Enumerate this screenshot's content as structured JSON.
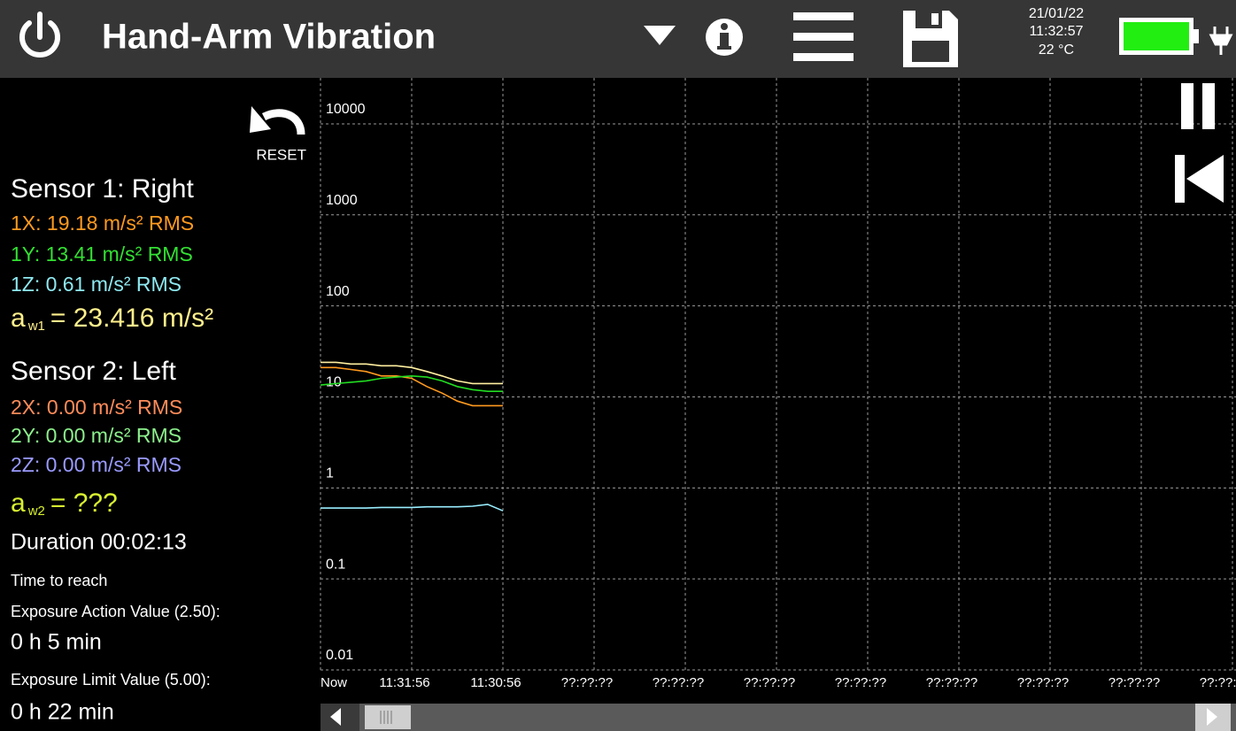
{
  "header": {
    "title": "Hand-Arm Vibration",
    "date": "21/01/22",
    "time": "11:32:57",
    "temperature": "22 °C"
  },
  "sidebar": {
    "reset": "RESET",
    "sensor1": {
      "title": "Sensor 1: Right",
      "lines": [
        "1X: 19.18 m/s² RMS",
        "1Y: 13.41 m/s² RMS",
        "1Z: 0.61 m/s² RMS"
      ],
      "aw": {
        "symbol": "a",
        "sub": "w1",
        "text": "= 23.416 m/s²"
      }
    },
    "sensor2": {
      "title": "Sensor 2: Left",
      "lines": [
        "2X: 0.00 m/s² RMS",
        "2Y: 0.00 m/s² RMS",
        "2Z: 0.00 m/s² RMS"
      ],
      "aw": {
        "symbol": "a",
        "sub": "w2",
        "text": "= ???"
      }
    },
    "duration": "Duration 00:02:13",
    "time_to_reach": "Time to reach",
    "eav_label": "Exposure Action Value (2.50):",
    "eav": "0 h 5 min",
    "elv_label": "Exposure Limit Value (5.00):",
    "elv": "0 h 22 min"
  },
  "chart_data": {
    "type": "line",
    "yscale": "log",
    "grid": true,
    "x": [
      0,
      10,
      20,
      30,
      40,
      50,
      60,
      70,
      80,
      90,
      100,
      110,
      120
    ],
    "xlim": [
      0,
      600
    ],
    "xticks": [
      {
        "value": 0,
        "label": "Now"
      },
      {
        "value": 60,
        "label": "11:31:56"
      },
      {
        "value": 120,
        "label": "11:30:56"
      },
      {
        "value": 180,
        "label": "??:??:??"
      },
      {
        "value": 240,
        "label": "??:??:??"
      },
      {
        "value": 300,
        "label": "??:??:??"
      },
      {
        "value": 360,
        "label": "??:??:??"
      },
      {
        "value": 420,
        "label": "??:??:??"
      },
      {
        "value": 480,
        "label": "??:??:??"
      },
      {
        "value": 540,
        "label": "??:??:??"
      },
      {
        "value": 600,
        "label": "??:??:??"
      }
    ],
    "ylim": [
      0.01,
      32000
    ],
    "yticks": [
      0.01,
      0.1,
      1,
      10,
      100,
      1000,
      10000
    ],
    "series": [
      {
        "color": "#fff0a0",
        "values": [
          24,
          24,
          23,
          23,
          22,
          22,
          21,
          19,
          17,
          15,
          14,
          14,
          14
        ]
      },
      {
        "color": "#ff9a1f",
        "values": [
          21,
          21,
          20,
          19,
          17,
          17,
          16,
          13,
          11,
          9,
          8,
          8,
          8
        ]
      },
      {
        "color": "#22dd22",
        "values": [
          13.5,
          14,
          14.5,
          15,
          16,
          16.5,
          17,
          16.5,
          15,
          13,
          12,
          11.5,
          11.5
        ]
      },
      {
        "color": "#99eeff",
        "values": [
          0.6,
          0.6,
          0.6,
          0.6,
          0.61,
          0.61,
          0.61,
          0.62,
          0.62,
          0.62,
          0.63,
          0.66,
          0.56
        ]
      }
    ]
  }
}
